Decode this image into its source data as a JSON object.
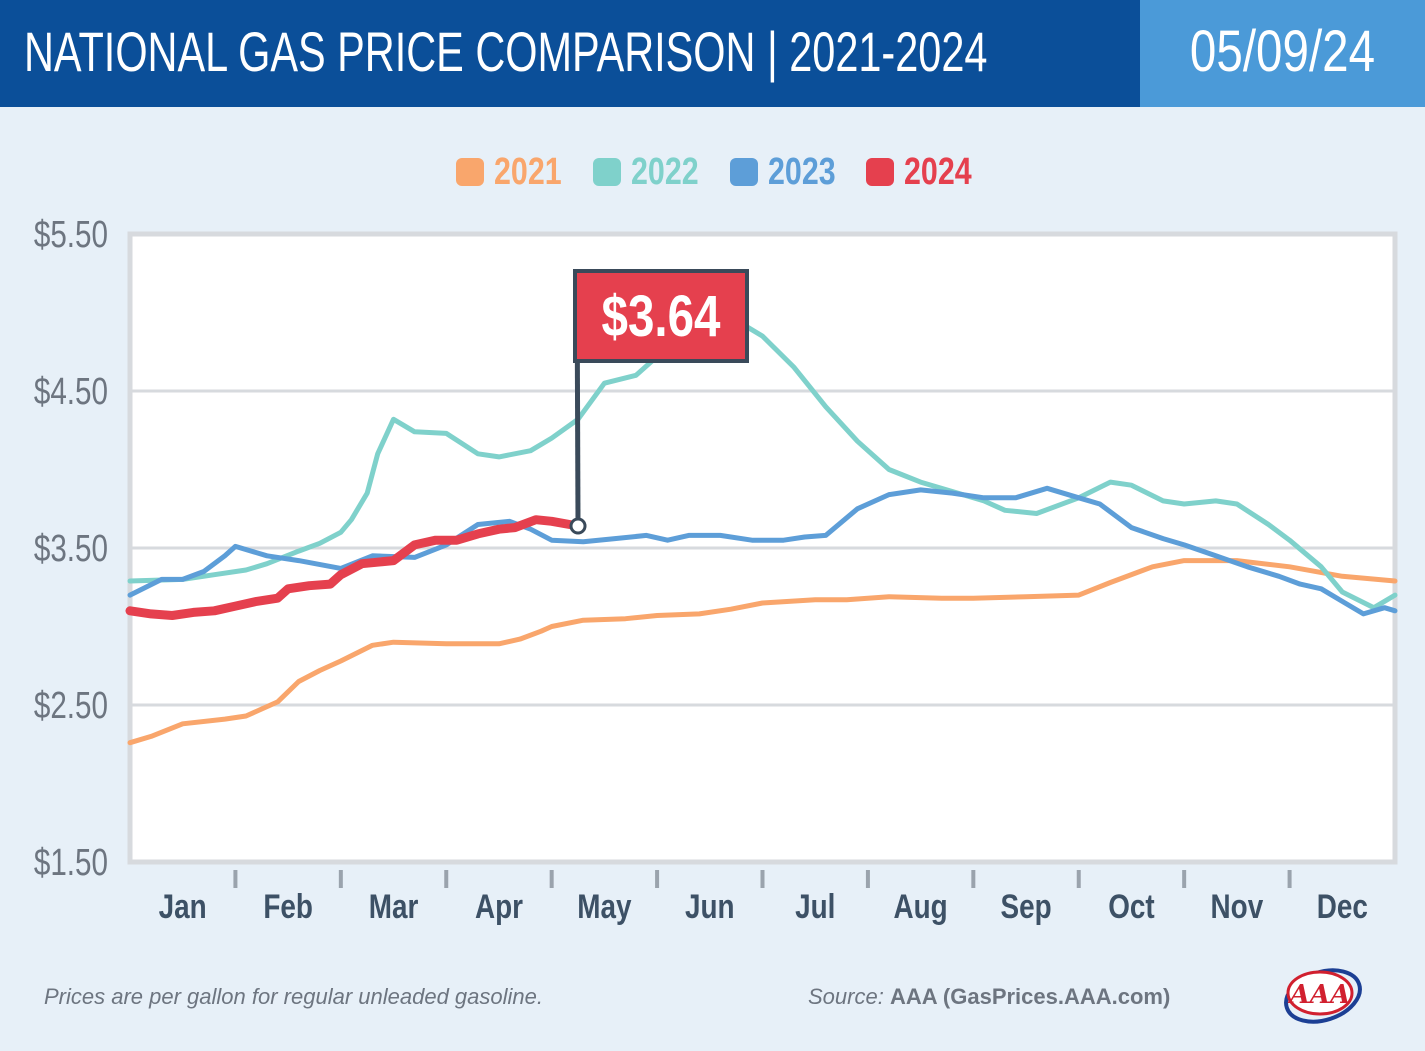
{
  "header": {
    "title": "NATIONAL GAS PRICE COMPARISON | 2021-2024",
    "date": "05/09/24"
  },
  "colors": {
    "title_bg": "#0b4f99",
    "date_bg": "#4b9ad8",
    "page_bg": "#e7f0f8",
    "callout_bg": "#e5404e"
  },
  "chart_data": {
    "type": "line",
    "title": "NATIONAL GAS PRICE COMPARISON | 2021-2024",
    "xlabel": "",
    "ylabel": "",
    "x_categories": [
      "Jan",
      "Feb",
      "Mar",
      "Apr",
      "May",
      "Jun",
      "Jul",
      "Aug",
      "Sep",
      "Oct",
      "Nov",
      "Dec"
    ],
    "x_range": [
      1.0,
      13.0
    ],
    "x_unit": "month (1.0 = start of January, 13.0 = end of December)",
    "ylim": [
      1.5,
      5.5
    ],
    "yticks": [
      {
        "value": 1.5,
        "label": "$1.50"
      },
      {
        "value": 2.5,
        "label": "$2.50"
      },
      {
        "value": 3.5,
        "label": "$3.50"
      },
      {
        "value": 4.5,
        "label": "$4.50"
      },
      {
        "value": 5.5,
        "label": "$5.50"
      }
    ],
    "grid": true,
    "legend_position": "top-center",
    "series": [
      {
        "name": "2021",
        "color": "#f9a66c",
        "x": [
          1.0,
          1.2,
          1.5,
          1.9,
          2.1,
          2.4,
          2.6,
          2.8,
          3.0,
          3.3,
          3.5,
          4.0,
          4.5,
          4.7,
          4.9,
          5.0,
          5.3,
          5.7,
          6.0,
          6.4,
          6.7,
          7.0,
          7.5,
          7.8,
          8.2,
          8.7,
          9.0,
          9.5,
          10.0,
          10.3,
          10.7,
          11.0,
          11.5,
          12.0,
          12.5,
          13.0
        ],
        "y": [
          2.26,
          2.3,
          2.38,
          2.41,
          2.43,
          2.52,
          2.65,
          2.72,
          2.78,
          2.88,
          2.9,
          2.89,
          2.89,
          2.92,
          2.97,
          3.0,
          3.04,
          3.05,
          3.07,
          3.08,
          3.11,
          3.15,
          3.17,
          3.17,
          3.19,
          3.18,
          3.18,
          3.19,
          3.2,
          3.28,
          3.38,
          3.42,
          3.42,
          3.38,
          3.32,
          3.29
        ]
      },
      {
        "name": "2022",
        "color": "#7fd1cb",
        "x": [
          1.0,
          1.5,
          1.8,
          2.1,
          2.3,
          2.6,
          2.8,
          3.0,
          3.1,
          3.25,
          3.35,
          3.5,
          3.7,
          4.0,
          4.3,
          4.5,
          4.8,
          5.0,
          5.25,
          5.5,
          5.8,
          6.0,
          6.3,
          6.5,
          6.7,
          7.0,
          7.3,
          7.6,
          7.9,
          8.2,
          8.5,
          8.8,
          9.1,
          9.3,
          9.6,
          10.0,
          10.3,
          10.5,
          10.8,
          11.0,
          11.3,
          11.5,
          11.8,
          12.0,
          12.3,
          12.5,
          12.8,
          13.0
        ],
        "y": [
          3.29,
          3.3,
          3.33,
          3.36,
          3.4,
          3.48,
          3.53,
          3.6,
          3.68,
          3.85,
          4.1,
          4.32,
          4.24,
          4.23,
          4.1,
          4.08,
          4.12,
          4.2,
          4.32,
          4.55,
          4.6,
          4.72,
          4.9,
          5.02,
          4.97,
          4.85,
          4.65,
          4.4,
          4.18,
          4.0,
          3.92,
          3.86,
          3.8,
          3.74,
          3.72,
          3.82,
          3.92,
          3.9,
          3.8,
          3.78,
          3.8,
          3.78,
          3.65,
          3.55,
          3.38,
          3.22,
          3.12,
          3.2
        ]
      },
      {
        "name": "2023",
        "color": "#5d9ed8",
        "x": [
          1.0,
          1.3,
          1.5,
          1.7,
          1.9,
          2.0,
          2.3,
          2.6,
          3.0,
          3.3,
          3.7,
          4.0,
          4.3,
          4.6,
          4.8,
          5.0,
          5.3,
          5.6,
          5.9,
          6.1,
          6.3,
          6.6,
          6.9,
          7.2,
          7.4,
          7.6,
          7.9,
          8.2,
          8.5,
          8.8,
          9.1,
          9.4,
          9.7,
          10.0,
          10.2,
          10.5,
          10.8,
          11.0,
          11.3,
          11.6,
          11.9,
          12.1,
          12.3,
          12.5,
          12.7,
          12.9,
          13.0
        ],
        "y": [
          3.2,
          3.3,
          3.3,
          3.35,
          3.45,
          3.51,
          3.45,
          3.42,
          3.37,
          3.45,
          3.44,
          3.52,
          3.65,
          3.67,
          3.62,
          3.55,
          3.54,
          3.56,
          3.58,
          3.55,
          3.58,
          3.58,
          3.55,
          3.55,
          3.57,
          3.58,
          3.75,
          3.84,
          3.87,
          3.85,
          3.82,
          3.82,
          3.88,
          3.82,
          3.78,
          3.63,
          3.56,
          3.52,
          3.45,
          3.38,
          3.32,
          3.27,
          3.24,
          3.16,
          3.08,
          3.12,
          3.1
        ]
      },
      {
        "name": "2024",
        "color": "#e5404e",
        "x": [
          1.0,
          1.2,
          1.4,
          1.6,
          1.8,
          2.0,
          2.2,
          2.4,
          2.5,
          2.7,
          2.9,
          3.0,
          3.2,
          3.5,
          3.7,
          3.9,
          4.1,
          4.3,
          4.5,
          4.65,
          4.85,
          5.0,
          5.25
        ],
        "y": [
          3.1,
          3.08,
          3.07,
          3.09,
          3.1,
          3.13,
          3.16,
          3.18,
          3.24,
          3.26,
          3.27,
          3.33,
          3.4,
          3.42,
          3.52,
          3.55,
          3.55,
          3.59,
          3.62,
          3.63,
          3.68,
          3.67,
          3.64
        ]
      }
    ],
    "annotation": {
      "label": "$3.64",
      "series": "2024",
      "x": 5.25,
      "y": 3.64
    }
  },
  "footer": {
    "note": "Prices are per gallon for regular unleaded gasoline.",
    "source_label": "Source:",
    "source_value": "AAA (GasPrices.AAA.com)",
    "logo_text": "AAA"
  }
}
